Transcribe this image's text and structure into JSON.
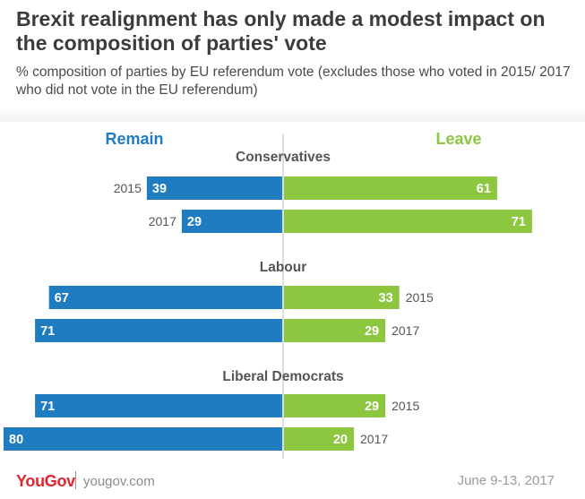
{
  "title": "Brexit realignment has only made a modest impact on the composition of parties' vote",
  "subtitle": "% composition of parties by EU referendum vote (excludes those who voted in 2015/ 2017 who did not vote in the EU referendum)",
  "footer": {
    "logo": "YouGov",
    "url": "yougov.com",
    "date": "June 9-13, 2017"
  },
  "colors": {
    "remain": "#1f7cc1",
    "leave": "#8dc63f",
    "text": "#555555"
  },
  "chart_data": {
    "type": "bar",
    "orientation": "horizontal-diverging",
    "series": [
      {
        "name": "Remain",
        "color": "#1f7cc1"
      },
      {
        "name": "Leave",
        "color": "#8dc63f"
      }
    ],
    "groups": [
      {
        "party": "Conservatives",
        "year_label_side": "left",
        "rows": [
          {
            "year": "2015",
            "remain": 39,
            "leave": 61
          },
          {
            "year": "2017",
            "remain": 29,
            "leave": 71
          }
        ]
      },
      {
        "party": "Labour",
        "year_label_side": "right",
        "rows": [
          {
            "year": "2015",
            "remain": 67,
            "leave": 33
          },
          {
            "year": "2017",
            "remain": 71,
            "leave": 29
          }
        ]
      },
      {
        "party": "Liberal Democrats",
        "year_label_side": "right",
        "rows": [
          {
            "year": "2015",
            "remain": 71,
            "leave": 29
          },
          {
            "year": "2017",
            "remain": 80,
            "leave": 20
          }
        ]
      }
    ]
  }
}
